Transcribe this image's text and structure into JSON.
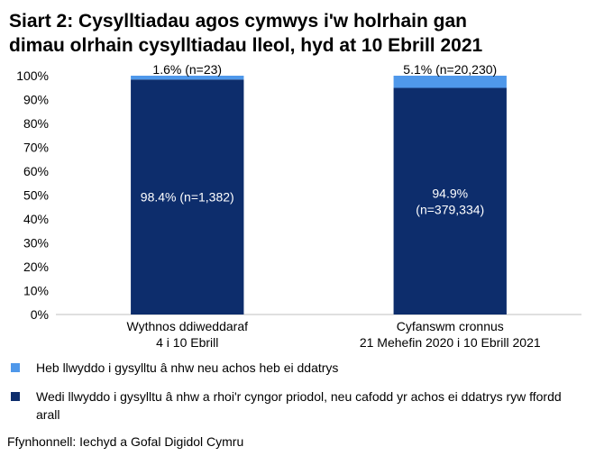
{
  "chart_data": {
    "type": "stacked_bar",
    "title": "Siart 2: Cysylltiadau agos cymwys i'w holrhain gan\ndimau olrhain cysylltiadau lleol, hyd at 10 Ebrill 2021",
    "categories": [
      "Wythnos ddiweddaraf\n4 i 10 Ebrill",
      "Cyfanswm cronnus\n21 Mehefin 2020 i 10 Ebrill 2021"
    ],
    "series": [
      {
        "name": "Wedi llwyddo i gysylltu â nhw a rhoi'r cyngor priodol, neu cafodd yr achos ei ddatrys ryw ffordd arall",
        "color": "#0d2d6c",
        "values": [
          98.4,
          94.9
        ],
        "value_labels": [
          "98.4% (n=1,382)",
          "94.9%\n(n=379,334)"
        ]
      },
      {
        "name": "Heb llwyddo i gysylltu â nhw neu achos heb ei ddatrys",
        "color": "#4f98ea",
        "values": [
          1.6,
          5.1
        ],
        "value_labels": [
          "1.6% (n=23)",
          "5.1% (n=20,230)"
        ]
      }
    ],
    "ylim": [
      0,
      100
    ],
    "yticks": [
      {
        "value": 0,
        "label": "0%"
      },
      {
        "value": 10,
        "label": "10%"
      },
      {
        "value": 20,
        "label": "20%"
      },
      {
        "value": 30,
        "label": "30%"
      },
      {
        "value": 40,
        "label": "40%"
      },
      {
        "value": 50,
        "label": "50%"
      },
      {
        "value": 60,
        "label": "60%"
      },
      {
        "value": 70,
        "label": "70%"
      },
      {
        "value": 80,
        "label": "80%"
      },
      {
        "value": 90,
        "label": "90%"
      },
      {
        "value": 100,
        "label": "100%"
      }
    ],
    "grid": false,
    "source": "Ffynhonnell: Iechyd a Gofal Digidol Cymru"
  }
}
